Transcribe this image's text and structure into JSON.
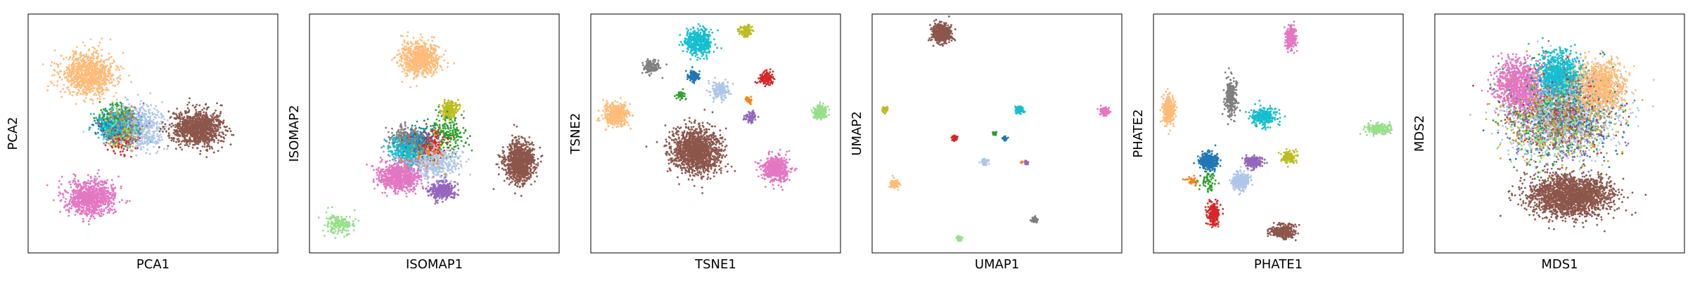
{
  "palette": {
    "blue": "#1f77b4",
    "light_blue": "#aec7e8",
    "orange": "#ff7f0e",
    "light_orange": "#ffbb78",
    "green": "#2ca02c",
    "light_green": "#98df8a",
    "red": "#d62728",
    "purple": "#9467bd",
    "brown": "#8c564b",
    "pink": "#e377c2",
    "gray": "#7f7f7f",
    "olive": "#bcbd22",
    "cyan": "#17becf"
  },
  "chart_data": [
    {
      "type": "scatter",
      "xlabel": "PCA1",
      "ylabel": "PCA2",
      "grid": false,
      "ticks": false,
      "xlim": [
        0,
        1
      ],
      "ylim": [
        0,
        1
      ],
      "clusters": [
        {
          "color": "light_blue",
          "center": [
            0.44,
            0.47
          ],
          "spread": [
            0.09,
            0.08
          ],
          "n": 650
        },
        {
          "color": "gray",
          "center": [
            0.38,
            0.48
          ],
          "spread": [
            0.05,
            0.05
          ],
          "n": 220
        },
        {
          "color": "blue",
          "center": [
            0.34,
            0.47
          ],
          "spread": [
            0.05,
            0.04
          ],
          "n": 200
        },
        {
          "color": "green",
          "center": [
            0.36,
            0.44
          ],
          "spread": [
            0.06,
            0.05
          ],
          "n": 180
        },
        {
          "color": "red",
          "center": [
            0.38,
            0.52
          ],
          "spread": [
            0.05,
            0.05
          ],
          "n": 150
        },
        {
          "color": "purple",
          "center": [
            0.4,
            0.46
          ],
          "spread": [
            0.05,
            0.05
          ],
          "n": 150
        },
        {
          "color": "olive",
          "center": [
            0.37,
            0.5
          ],
          "spread": [
            0.05,
            0.05
          ],
          "n": 150
        },
        {
          "color": "orange",
          "center": [
            0.37,
            0.46
          ],
          "spread": [
            0.05,
            0.05
          ],
          "n": 120
        },
        {
          "color": "light_green",
          "center": [
            0.38,
            0.47
          ],
          "spread": [
            0.05,
            0.05
          ],
          "n": 150
        },
        {
          "color": "cyan",
          "center": [
            0.36,
            0.47
          ],
          "spread": [
            0.06,
            0.05
          ],
          "n": 500
        },
        {
          "color": "light_orange",
          "center": [
            0.24,
            0.25
          ],
          "spread": [
            0.09,
            0.07
          ],
          "n": 900
        },
        {
          "color": "pink",
          "center": [
            0.25,
            0.77
          ],
          "spread": [
            0.08,
            0.06
          ],
          "n": 900
        },
        {
          "color": "brown",
          "center": [
            0.68,
            0.48
          ],
          "spread": [
            0.08,
            0.06
          ],
          "n": 1100
        }
      ]
    },
    {
      "type": "scatter",
      "xlabel": "ISOMAP1",
      "ylabel": "ISOMAP2",
      "grid": false,
      "ticks": false,
      "xlim": [
        0,
        1
      ],
      "ylim": [
        0,
        1
      ],
      "clusters": [
        {
          "color": "light_orange",
          "center": [
            0.44,
            0.19
          ],
          "spread": [
            0.06,
            0.06
          ],
          "n": 700
        },
        {
          "color": "olive",
          "center": [
            0.56,
            0.4
          ],
          "spread": [
            0.03,
            0.03
          ],
          "n": 200
        },
        {
          "color": "gray",
          "center": [
            0.39,
            0.52
          ],
          "spread": [
            0.05,
            0.04
          ],
          "n": 250
        },
        {
          "color": "cyan",
          "center": [
            0.4,
            0.57
          ],
          "spread": [
            0.06,
            0.05
          ],
          "n": 500
        },
        {
          "color": "blue",
          "center": [
            0.45,
            0.54
          ],
          "spread": [
            0.05,
            0.05
          ],
          "n": 200
        },
        {
          "color": "red",
          "center": [
            0.49,
            0.55
          ],
          "spread": [
            0.05,
            0.05
          ],
          "n": 180
        },
        {
          "color": "green",
          "center": [
            0.55,
            0.5
          ],
          "spread": [
            0.07,
            0.07
          ],
          "n": 200
        },
        {
          "color": "light_blue",
          "center": [
            0.5,
            0.62
          ],
          "spread": [
            0.08,
            0.06
          ],
          "n": 500
        },
        {
          "color": "purple",
          "center": [
            0.53,
            0.74
          ],
          "spread": [
            0.04,
            0.03
          ],
          "n": 350
        },
        {
          "color": "orange",
          "center": [
            0.47,
            0.58
          ],
          "spread": [
            0.06,
            0.06
          ],
          "n": 100
        },
        {
          "color": "pink",
          "center": [
            0.36,
            0.68
          ],
          "spread": [
            0.07,
            0.05
          ],
          "n": 800
        },
        {
          "color": "brown",
          "center": [
            0.84,
            0.62
          ],
          "spread": [
            0.05,
            0.07
          ],
          "n": 1000
        },
        {
          "color": "light_green",
          "center": [
            0.12,
            0.88
          ],
          "spread": [
            0.05,
            0.04
          ],
          "n": 180
        }
      ]
    },
    {
      "type": "scatter",
      "xlabel": "TSNE1",
      "ylabel": "TSNE2",
      "grid": false,
      "ticks": false,
      "xlim": [
        0,
        1
      ],
      "ylim": [
        0,
        1
      ],
      "clusters": [
        {
          "color": "cyan",
          "center": [
            0.43,
            0.12
          ],
          "spread": [
            0.045,
            0.045
          ],
          "n": 500
        },
        {
          "color": "olive",
          "center": [
            0.62,
            0.07
          ],
          "spread": [
            0.02,
            0.02
          ],
          "n": 120
        },
        {
          "color": "gray",
          "center": [
            0.24,
            0.22
          ],
          "spread": [
            0.025,
            0.025
          ],
          "n": 150
        },
        {
          "color": "blue",
          "center": [
            0.41,
            0.26
          ],
          "spread": [
            0.02,
            0.02
          ],
          "n": 100
        },
        {
          "color": "light_blue",
          "center": [
            0.52,
            0.32
          ],
          "spread": [
            0.03,
            0.03
          ],
          "n": 200
        },
        {
          "color": "red",
          "center": [
            0.7,
            0.27
          ],
          "spread": [
            0.025,
            0.025
          ],
          "n": 150
        },
        {
          "color": "green",
          "center": [
            0.36,
            0.34
          ],
          "spread": [
            0.015,
            0.015
          ],
          "n": 40
        },
        {
          "color": "orange",
          "center": [
            0.63,
            0.36
          ],
          "spread": [
            0.01,
            0.01
          ],
          "n": 30
        },
        {
          "color": "purple",
          "center": [
            0.64,
            0.43
          ],
          "spread": [
            0.02,
            0.02
          ],
          "n": 80
        },
        {
          "color": "light_orange",
          "center": [
            0.1,
            0.42
          ],
          "spread": [
            0.04,
            0.04
          ],
          "n": 400
        },
        {
          "color": "light_green",
          "center": [
            0.92,
            0.41
          ],
          "spread": [
            0.025,
            0.025
          ],
          "n": 200
        },
        {
          "color": "brown",
          "center": [
            0.42,
            0.57
          ],
          "spread": [
            0.08,
            0.08
          ],
          "n": 1400
        },
        {
          "color": "pink",
          "center": [
            0.74,
            0.65
          ],
          "spread": [
            0.045,
            0.045
          ],
          "n": 500
        }
      ]
    },
    {
      "type": "scatter",
      "xlabel": "UMAP1",
      "ylabel": "UMAP2",
      "grid": false,
      "ticks": false,
      "xlim": [
        0,
        1
      ],
      "ylim": [
        0,
        1
      ],
      "clusters": [
        {
          "color": "brown",
          "center": [
            0.28,
            0.08
          ],
          "spread": [
            0.03,
            0.03
          ],
          "n": 600
        },
        {
          "color": "olive",
          "center": [
            0.05,
            0.4
          ],
          "spread": [
            0.01,
            0.01
          ],
          "n": 40
        },
        {
          "color": "cyan",
          "center": [
            0.59,
            0.4
          ],
          "spread": [
            0.015,
            0.015
          ],
          "n": 80
        },
        {
          "color": "pink",
          "center": [
            0.93,
            0.41
          ],
          "spread": [
            0.015,
            0.015
          ],
          "n": 100
        },
        {
          "color": "red",
          "center": [
            0.33,
            0.52
          ],
          "spread": [
            0.01,
            0.01
          ],
          "n": 40
        },
        {
          "color": "green",
          "center": [
            0.49,
            0.5
          ],
          "spread": [
            0.008,
            0.008
          ],
          "n": 25
        },
        {
          "color": "blue",
          "center": [
            0.53,
            0.52
          ],
          "spread": [
            0.008,
            0.008
          ],
          "n": 30
        },
        {
          "color": "light_blue",
          "center": [
            0.45,
            0.62
          ],
          "spread": [
            0.012,
            0.012
          ],
          "n": 60
        },
        {
          "color": "purple",
          "center": [
            0.62,
            0.62
          ],
          "spread": [
            0.008,
            0.008
          ],
          "n": 20
        },
        {
          "color": "orange",
          "center": [
            0.6,
            0.62
          ],
          "spread": [
            0.005,
            0.005
          ],
          "n": 10
        },
        {
          "color": "light_orange",
          "center": [
            0.09,
            0.71
          ],
          "spread": [
            0.015,
            0.015
          ],
          "n": 80
        },
        {
          "color": "gray",
          "center": [
            0.65,
            0.86
          ],
          "spread": [
            0.01,
            0.01
          ],
          "n": 40
        },
        {
          "color": "light_green",
          "center": [
            0.35,
            0.94
          ],
          "spread": [
            0.01,
            0.01
          ],
          "n": 40
        }
      ]
    },
    {
      "type": "scatter",
      "xlabel": "PHATE1",
      "ylabel": "PHATE2",
      "grid": false,
      "ticks": false,
      "xlim": [
        0,
        1
      ],
      "ylim": [
        0,
        1
      ],
      "clusters": [
        {
          "color": "pink",
          "center": [
            0.55,
            0.1
          ],
          "spread": [
            0.02,
            0.04
          ],
          "n": 250
        },
        {
          "color": "gray",
          "center": [
            0.31,
            0.35
          ],
          "spread": [
            0.02,
            0.06
          ],
          "n": 250
        },
        {
          "color": "cyan",
          "center": [
            0.44,
            0.43
          ],
          "spread": [
            0.04,
            0.03
          ],
          "n": 300
        },
        {
          "color": "light_orange",
          "center": [
            0.06,
            0.4
          ],
          "spread": [
            0.02,
            0.05
          ],
          "n": 300
        },
        {
          "color": "light_green",
          "center": [
            0.9,
            0.48
          ],
          "spread": [
            0.04,
            0.02
          ],
          "n": 200
        },
        {
          "color": "blue",
          "center": [
            0.22,
            0.62
          ],
          "spread": [
            0.03,
            0.03
          ],
          "n": 300
        },
        {
          "color": "purple",
          "center": [
            0.4,
            0.62
          ],
          "spread": [
            0.03,
            0.02
          ],
          "n": 200
        },
        {
          "color": "olive",
          "center": [
            0.54,
            0.6
          ],
          "spread": [
            0.025,
            0.02
          ],
          "n": 150
        },
        {
          "color": "light_blue",
          "center": [
            0.35,
            0.7
          ],
          "spread": [
            0.03,
            0.03
          ],
          "n": 300
        },
        {
          "color": "green",
          "center": [
            0.22,
            0.7
          ],
          "spread": [
            0.03,
            0.04
          ],
          "n": 60
        },
        {
          "color": "orange",
          "center": [
            0.15,
            0.7
          ],
          "spread": [
            0.02,
            0.02
          ],
          "n": 30
        },
        {
          "color": "red",
          "center": [
            0.24,
            0.84
          ],
          "spread": [
            0.02,
            0.04
          ],
          "n": 250
        },
        {
          "color": "brown",
          "center": [
            0.52,
            0.91
          ],
          "spread": [
            0.04,
            0.025
          ],
          "n": 300
        }
      ]
    },
    {
      "type": "scatter",
      "xlabel": "MDS1",
      "ylabel": "MDS2",
      "grid": false,
      "ticks": false,
      "xlim": [
        0,
        1
      ],
      "ylim": [
        0,
        1
      ],
      "clusters": [
        {
          "color": "light_blue",
          "center": [
            0.5,
            0.42
          ],
          "spread": [
            0.18,
            0.15
          ],
          "n": 1000
        },
        {
          "color": "gray",
          "center": [
            0.5,
            0.42
          ],
          "spread": [
            0.17,
            0.15
          ],
          "n": 400
        },
        {
          "color": "green",
          "center": [
            0.48,
            0.42
          ],
          "spread": [
            0.18,
            0.15
          ],
          "n": 300
        },
        {
          "color": "blue",
          "center": [
            0.52,
            0.42
          ],
          "spread": [
            0.18,
            0.15
          ],
          "n": 300
        },
        {
          "color": "red",
          "center": [
            0.5,
            0.4
          ],
          "spread": [
            0.17,
            0.15
          ],
          "n": 250
        },
        {
          "color": "purple",
          "center": [
            0.52,
            0.45
          ],
          "spread": [
            0.17,
            0.15
          ],
          "n": 250
        },
        {
          "color": "olive",
          "center": [
            0.5,
            0.44
          ],
          "spread": [
            0.17,
            0.15
          ],
          "n": 250
        },
        {
          "color": "orange",
          "center": [
            0.5,
            0.42
          ],
          "spread": [
            0.17,
            0.15
          ],
          "n": 200
        },
        {
          "color": "light_green",
          "center": [
            0.5,
            0.44
          ],
          "spread": [
            0.17,
            0.15
          ],
          "n": 250
        },
        {
          "color": "cyan",
          "center": [
            0.5,
            0.26
          ],
          "spread": [
            0.07,
            0.08
          ],
          "n": 900
        },
        {
          "color": "light_orange",
          "center": [
            0.66,
            0.3
          ],
          "spread": [
            0.08,
            0.09
          ],
          "n": 900
        },
        {
          "color": "pink",
          "center": [
            0.33,
            0.3
          ],
          "spread": [
            0.07,
            0.09
          ],
          "n": 900
        },
        {
          "color": "brown",
          "center": [
            0.54,
            0.76
          ],
          "spread": [
            0.14,
            0.07
          ],
          "n": 2000
        }
      ]
    }
  ]
}
